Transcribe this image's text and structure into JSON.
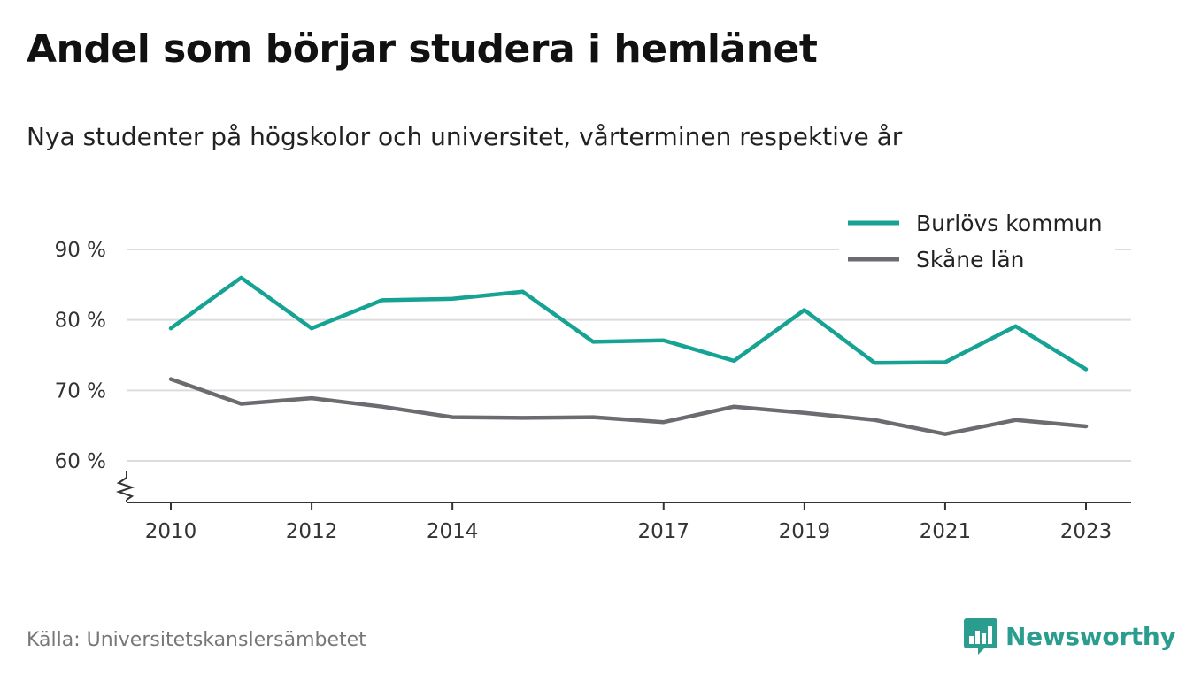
{
  "title": "Andel som börjar studera i hemlänet",
  "subtitle": "Nya studenter på högskolor och universitet, vårterminen respektive år",
  "source": "Källa: Universitetskanslersämbetet",
  "brand": "Newsworthy",
  "colors": {
    "burlov": "#16a394",
    "skane": "#6b6b70",
    "grid": "#dcdcdc",
    "axis": "#333333",
    "brand": "#2a9d8f"
  },
  "icons": {
    "brand_logo": "newsworthy-logo-icon",
    "axis_break": "axis-break-icon"
  },
  "chart_data": {
    "type": "line",
    "title": "Andel som börjar studera i hemlänet",
    "subtitle": "Nya studenter på högskolor och universitet, vårterminen respektive år",
    "x": [
      2010,
      2011,
      2012,
      2013,
      2014,
      2015,
      2016,
      2017,
      2018,
      2019,
      2020,
      2021,
      2022,
      2023
    ],
    "x_ticks": [
      2010,
      2012,
      2014,
      2017,
      2019,
      2021,
      2023
    ],
    "y_ticks": [
      60,
      70,
      80,
      90
    ],
    "y_tick_labels": [
      "60 %",
      "70 %",
      "80 %",
      "90 %"
    ],
    "ylim": [
      54,
      90
    ],
    "y_axis_break": true,
    "grid": true,
    "legend_position": "top-right",
    "series": [
      {
        "name": "Burlövs kommun",
        "color": "#16a394",
        "values": [
          78.8,
          86.0,
          78.8,
          82.8,
          83.0,
          84.0,
          76.9,
          77.1,
          74.2,
          81.4,
          73.9,
          74.0,
          79.1,
          73.0
        ]
      },
      {
        "name": "Skåne län",
        "color": "#6b6b70",
        "values": [
          71.6,
          68.1,
          68.9,
          67.7,
          66.2,
          66.1,
          66.2,
          65.5,
          67.7,
          66.8,
          65.8,
          63.8,
          65.8,
          64.9
        ]
      }
    ]
  }
}
